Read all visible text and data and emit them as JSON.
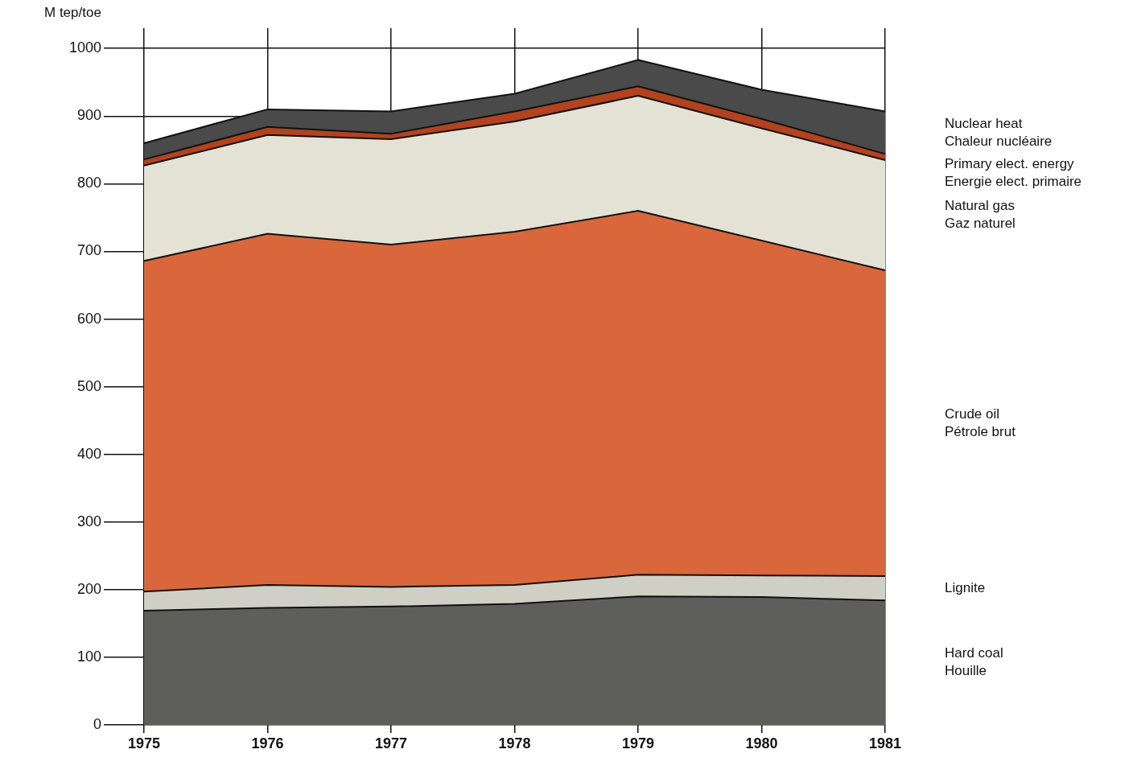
{
  "chart_data": {
    "type": "area",
    "stacked": true,
    "ylabel": "M tep/toe",
    "categories": [
      "1975",
      "1976",
      "1977",
      "1978",
      "1979",
      "1980",
      "1981"
    ],
    "ylim": [
      0,
      1030
    ],
    "yticks": [
      0,
      100,
      200,
      300,
      400,
      500,
      600,
      700,
      800,
      900,
      1000
    ],
    "grid": true,
    "legend": false,
    "series": [
      {
        "name": "Hard coal\nHouille",
        "color": "#5e5e5a",
        "values": [
          169,
          173,
          175,
          179,
          190,
          189,
          184
        ]
      },
      {
        "name": "Lignite",
        "color": "#cfcfc6",
        "values": [
          28,
          34,
          29,
          28,
          32,
          32,
          36
        ]
      },
      {
        "name": "Crude oil\nPétrole brut",
        "color": "#d9673b",
        "values": [
          489,
          519,
          506,
          522,
          538,
          495,
          452
        ]
      },
      {
        "name": "Natural gas\nGaz naturel",
        "color": "#e4e2d4",
        "values": [
          141,
          146,
          156,
          163,
          170,
          166,
          163
        ]
      },
      {
        "name": "Primary elect. energy\nEnergie elect. primaire",
        "color": "#b3421f",
        "values": [
          9,
          12,
          8,
          15,
          14,
          14,
          9
        ]
      },
      {
        "name": "Nuclear heat\nChaleur nucléaire",
        "color": "#4a4a4a",
        "values": [
          24,
          26,
          33,
          26,
          39,
          43,
          63
        ]
      }
    ]
  }
}
